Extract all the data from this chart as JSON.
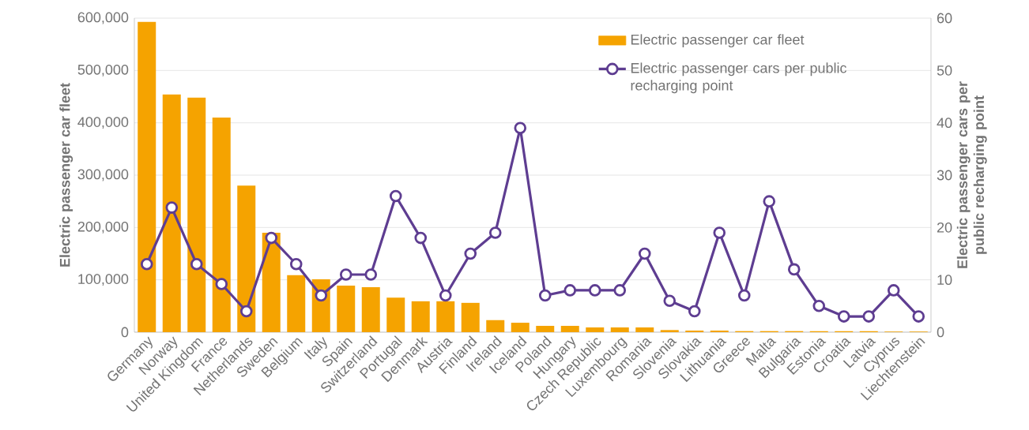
{
  "chart_data": {
    "type": "bar",
    "ylabel": "Electric passenger car fleet",
    "y2label": "Electric passenger cars per public recharging point",
    "categories": [
      "Germany",
      "Norway",
      "United Kingdom",
      "France",
      "Netherlands",
      "Sweden",
      "Belgium",
      "Italy",
      "Spain",
      "Switzerland",
      "Portugal",
      "Denmark",
      "Austria",
      "Finland",
      "Ireland",
      "Iceland",
      "Poland",
      "Hungary",
      "Czech Republic",
      "Luxembourg",
      "Romania",
      "Slovenia",
      "Slovakia",
      "Lithuania",
      "Greece",
      "Malta",
      "Bulgaria",
      "Estonia",
      "Croatia",
      "Latvia",
      "Cyprus",
      "Liechtenstein"
    ],
    "series": [
      {
        "name": "Electric passenger car fleet",
        "color": "#f5a300",
        "values": [
          593000,
          454000,
          448000,
          410000,
          280000,
          190000,
          109000,
          101000,
          89000,
          86000,
          66000,
          59000,
          59000,
          56000,
          23000,
          18000,
          12000,
          12000,
          9000,
          9000,
          9000,
          4000,
          3000,
          3000,
          2000,
          2000,
          2000,
          2000,
          2000,
          2000,
          1000,
          1000
        ]
      },
      {
        "name": "Electric passenger cars per public recharging point",
        "type": "line",
        "axis": "y2",
        "color": "#5e3d91",
        "marker": "circle",
        "values": [
          13,
          23.8,
          13,
          9.2,
          4,
          18,
          13,
          7,
          11,
          11,
          26,
          18,
          7,
          15,
          19,
          39,
          7,
          8,
          8,
          8,
          15,
          6,
          4,
          19,
          7,
          25,
          12,
          5,
          3,
          3,
          8,
          3
        ]
      }
    ],
    "ylim": [
      0,
      600000
    ],
    "yticks": [
      {
        "value": 0,
        "label": "0"
      },
      {
        "value": 100000,
        "label": "100,000"
      },
      {
        "value": 200000,
        "label": "200,000"
      },
      {
        "value": 300000,
        "label": "300,000"
      },
      {
        "value": 400000,
        "label": "400,000"
      },
      {
        "value": 500000,
        "label": "500,000"
      },
      {
        "value": 600000,
        "label": "600,000"
      }
    ],
    "y2lim": [
      0,
      60
    ],
    "y2ticks": [
      0,
      10,
      20,
      30,
      40,
      50,
      60
    ],
    "grid": "y",
    "legend": "top right"
  }
}
